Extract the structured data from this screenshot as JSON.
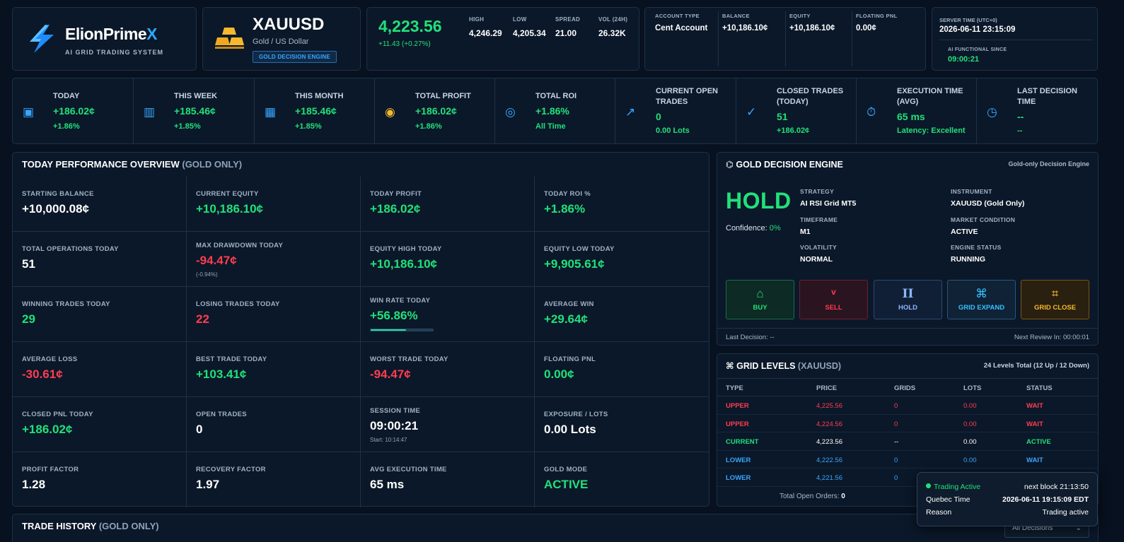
{
  "brand": {
    "name_main": "ElionPrime",
    "name_x": "X",
    "subtitle": "AI GRID TRADING SYSTEM"
  },
  "symbol": {
    "name": "XAUUSD",
    "description": "Gold / US Dollar",
    "badge": "GOLD DECISION ENGINE"
  },
  "price": {
    "current": "4,223.56",
    "change": "+11.43 (+0.27%)",
    "stats": [
      {
        "label": "HIGH",
        "value": "4,246.29"
      },
      {
        "label": "LOW",
        "value": "4,205.34"
      },
      {
        "label": "SPREAD",
        "value": "21.00"
      },
      {
        "label": "VOL (24H)",
        "value": "26.32K"
      }
    ]
  },
  "account": {
    "type_label": "ACCOUNT TYPE",
    "type_value": "Cent Account",
    "balance_label": "BALANCE",
    "balance_value": "+10,186.10¢",
    "equity_label": "EQUITY",
    "equity_value": "+10,186.10¢",
    "floating_label": "FLOATING PNL",
    "floating_value": "0.00¢"
  },
  "server": {
    "time_label": "SERVER TIME (UTC+0)",
    "time_value": "2026-06-11 23:15:09",
    "ai_label": "AI FUNCTIONAL SINCE",
    "ai_value": "09:00:21"
  },
  "stats": [
    {
      "icon": "▣",
      "title": "TODAY",
      "value": "+186.02¢",
      "sub": "+1.86%"
    },
    {
      "icon": "▥",
      "title": "THIS WEEK",
      "value": "+185.46¢",
      "sub": "+1.85%"
    },
    {
      "icon": "▦",
      "title": "THIS MONTH",
      "value": "+185.46¢",
      "sub": "+1.85%"
    },
    {
      "icon": "◉",
      "title": "TOTAL PROFIT",
      "value": "+186.02¢",
      "sub": "+1.86%"
    },
    {
      "icon": "◎",
      "title": "TOTAL ROI",
      "value": "+1.86%",
      "sub": "All Time"
    },
    {
      "icon": "↗",
      "title": "CURRENT OPEN TRADES",
      "value": "0",
      "sub": "0.00 Lots"
    },
    {
      "icon": "✓",
      "title": "CLOSED TRADES (TODAY)",
      "value": "51",
      "sub": "+186.02¢"
    },
    {
      "icon": "⏱",
      "title": "EXECUTION TIME (AVG)",
      "value": "65 ms",
      "sub": "Latency: Excellent"
    },
    {
      "icon": "◷",
      "title": "LAST DECISION TIME",
      "value": "--",
      "sub": "--"
    }
  ],
  "performance": {
    "title": "TODAY PERFORMANCE OVERVIEW",
    "title_sub": "(GOLD ONLY)",
    "cells": [
      {
        "label": "STARTING BALANCE",
        "value": "+10,000.08¢",
        "sub": ""
      },
      {
        "label": "CURRENT EQUITY",
        "value": "+10,186.10¢",
        "sub": ""
      },
      {
        "label": "TODAY PROFIT",
        "value": "+186.02¢",
        "sub": ""
      },
      {
        "label": "TODAY ROI %",
        "value": "+1.86%",
        "sub": ""
      },
      {
        "label": "TOTAL OPERATIONS TODAY",
        "value": "51",
        "sub": ""
      },
      {
        "label": "MAX DRAWDOWN TODAY",
        "value": "-94.47¢",
        "sub": "(-0.94%)"
      },
      {
        "label": "EQUITY HIGH TODAY",
        "value": "+10,186.10¢",
        "sub": ""
      },
      {
        "label": "EQUITY LOW TODAY",
        "value": "+9,905.61¢",
        "sub": ""
      },
      {
        "label": "WINNING TRADES TODAY",
        "value": "29",
        "sub": ""
      },
      {
        "label": "LOSING TRADES TODAY",
        "value": "22",
        "sub": ""
      },
      {
        "label": "WIN RATE TODAY",
        "value": "+56.86%",
        "sub": ""
      },
      {
        "label": "AVERAGE WIN",
        "value": "+29.64¢",
        "sub": ""
      },
      {
        "label": "AVERAGE LOSS",
        "value": "-30.61¢",
        "sub": ""
      },
      {
        "label": "BEST TRADE TODAY",
        "value": "+103.41¢",
        "sub": ""
      },
      {
        "label": "WORST TRADE TODAY",
        "value": "-94.47¢",
        "sub": ""
      },
      {
        "label": "FLOATING PNL",
        "value": "0.00¢",
        "sub": ""
      },
      {
        "label": "CLOSED PNL TODAY",
        "value": "+186.02¢",
        "sub": ""
      },
      {
        "label": "OPEN TRADES",
        "value": "0",
        "sub": ""
      },
      {
        "label": "SESSION TIME",
        "value": "09:00:21",
        "sub": "Start: 10:14:47"
      },
      {
        "label": "EXPOSURE / LOTS",
        "value": "0.00 Lots",
        "sub": ""
      },
      {
        "label": "PROFIT FACTOR",
        "value": "1.28",
        "sub": ""
      },
      {
        "label": "RECOVERY FACTOR",
        "value": "1.97",
        "sub": ""
      },
      {
        "label": "AVG EXECUTION TIME",
        "value": "65 ms",
        "sub": ""
      },
      {
        "label": "GOLD MODE",
        "value": "ACTIVE",
        "sub": ""
      }
    ],
    "win_rate_fraction": 0.5686
  },
  "decision": {
    "title": "GOLD DECISION ENGINE",
    "right_label": "Gold-only Decision Engine",
    "action": "HOLD",
    "confidence_label": "Confidence:",
    "confidence_value": "0%",
    "fields": [
      {
        "label": "STRATEGY",
        "value": "AI RSI Grid MT5"
      },
      {
        "label": "INSTRUMENT",
        "value": "XAUUSD (Gold Only)"
      },
      {
        "label": "TIMEFRAME",
        "value": "M1"
      },
      {
        "label": "MARKET CONDITION",
        "value": "ACTIVE"
      },
      {
        "label": "VOLATILITY",
        "value": "NORMAL"
      },
      {
        "label": "ENGINE STATUS",
        "value": "RUNNING"
      }
    ],
    "buttons": [
      {
        "label": "BUY",
        "icon": "⌂"
      },
      {
        "label": "SELL",
        "icon": "v"
      },
      {
        "label": "HOLD",
        "icon": "II"
      },
      {
        "label": "GRID EXPAND",
        "icon": "⌘"
      },
      {
        "label": "GRID CLOSE",
        "icon": "⌗"
      }
    ],
    "last_decision": "Last Decision: --",
    "next_review": "Next Review In: 00:00:01"
  },
  "grid": {
    "title": "GRID LEVELS",
    "title_sub": "(XAUUSD)",
    "total": "24 Levels Total (12 Up / 12 Down)",
    "headers": [
      "TYPE",
      "PRICE",
      "GRIDS",
      "LOTS",
      "STATUS"
    ],
    "rows": [
      {
        "type": "UPPER",
        "price": "4,225.56",
        "grids": "0",
        "lots": "0.00",
        "status": "WAIT"
      },
      {
        "type": "UPPER",
        "price": "4,224.56",
        "grids": "0",
        "lots": "0.00",
        "status": "WAIT"
      },
      {
        "type": "CURRENT",
        "price": "4,223.56",
        "grids": "--",
        "lots": "0.00",
        "status": "ACTIVE"
      },
      {
        "type": "LOWER",
        "price": "4,222.56",
        "grids": "0",
        "lots": "0.00",
        "status": "WAIT"
      },
      {
        "type": "LOWER",
        "price": "4,221.56",
        "grids": "0",
        "lots": "",
        "status": ""
      }
    ],
    "footer_label": "Total Open Orders:",
    "footer_value": "0"
  },
  "toast": {
    "status": "Trading Active",
    "next_block": "next block 21:13:50",
    "time_label": "Quebec Time",
    "time_value": "2026-06-11 19:15:09 EDT",
    "reason_label": "Reason",
    "reason_value": "Trading active"
  },
  "history": {
    "title": "TRADE HISTORY",
    "title_sub": "(GOLD ONLY)",
    "filter": "All Decisions"
  },
  "colors": {
    "positive": "#22e07a",
    "negative": "#ff3d4f",
    "warning": "#f5b82e",
    "accent": "#38a6ff",
    "panel": "#0b1829",
    "background": "#07111f"
  }
}
